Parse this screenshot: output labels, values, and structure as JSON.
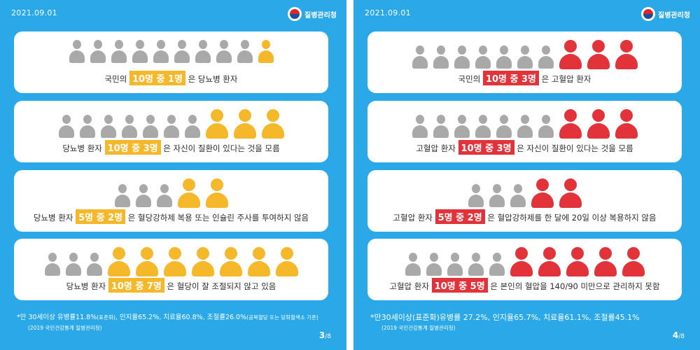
{
  "left": {
    "date": "2021.09.01",
    "logo_text": "질병관리청",
    "cards": [
      {
        "prefix": "국민의 ",
        "highlight": "10명 중 1명",
        "suffix": " 은 당뇨병 환자"
      },
      {
        "prefix": "당뇨병 환자 ",
        "highlight": "10명 중 3명",
        "suffix": " 은 자신이 질환이 있다는 것을 모름"
      },
      {
        "prefix": "당뇨병 환자 ",
        "highlight": "5명 중 2명",
        "suffix": " 은 혈당강하제 복용 또는 인슐린 주사를 투여하지 않음"
      },
      {
        "prefix": "당뇨병 환자 ",
        "highlight": "10명 중 7명",
        "suffix": " 은 혈당이 잘 조절되지 않고 있음"
      }
    ],
    "footnote_main": "*만 30세이상 유병률11.8%",
    "footnote_small_1": "(표준화)",
    "footnote_mid": ", 인지율65.2%, 치료율60.8%, 조절률26.0%",
    "footnote_small_2": "(공복혈당 또는 당화혈색소 기준)",
    "source": "(2019 국민건강통계 질병관리청)",
    "page": "3",
    "total": "/8"
  },
  "right": {
    "date": "2021.09.01",
    "logo_text": "질병관리청",
    "cards": [
      {
        "prefix": "국민의 ",
        "highlight": "10명 중 3명",
        "suffix": " 은 고혈압 환자"
      },
      {
        "prefix": "고혈압 환자 ",
        "highlight": "10명 중 3명",
        "suffix": " 은 자신이 질환이 있다는 것을 모름"
      },
      {
        "prefix": "고혈압 환자 ",
        "highlight": "5명 중 2명",
        "suffix": " 은 혈압강하제를 한 달에 20일 이상 복용하지 않음"
      },
      {
        "prefix": "고혈압 환자 ",
        "highlight": "10명 중 5명",
        "suffix": " 은 본인의 혈압을 140/90 미만으로 관리하지 못함"
      }
    ],
    "footnote": "*만30세이상(표준화)유병률 27.2%, 인지율65.7%, 치료율61.1%, 조절률45.1%",
    "source": "(2019 국민건강통계 질병관리청)",
    "page": "4",
    "total": "/8"
  },
  "colors": {
    "background": "#2aa8e8",
    "diabetes_accent": "#f5b82b",
    "hypertension_accent": "#e2323a",
    "inactive_person": "#a9a9a9"
  },
  "icon_rows": {
    "left": [
      {
        "total": 10,
        "highlighted": 1
      },
      {
        "total": 10,
        "highlighted": 3
      },
      {
        "total": 5,
        "highlighted": 2
      },
      {
        "total": 10,
        "highlighted": 7
      }
    ],
    "right": [
      {
        "total": 10,
        "highlighted": 3
      },
      {
        "total": 10,
        "highlighted": 3
      },
      {
        "total": 5,
        "highlighted": 2
      },
      {
        "total": 10,
        "highlighted": 5
      }
    ]
  }
}
